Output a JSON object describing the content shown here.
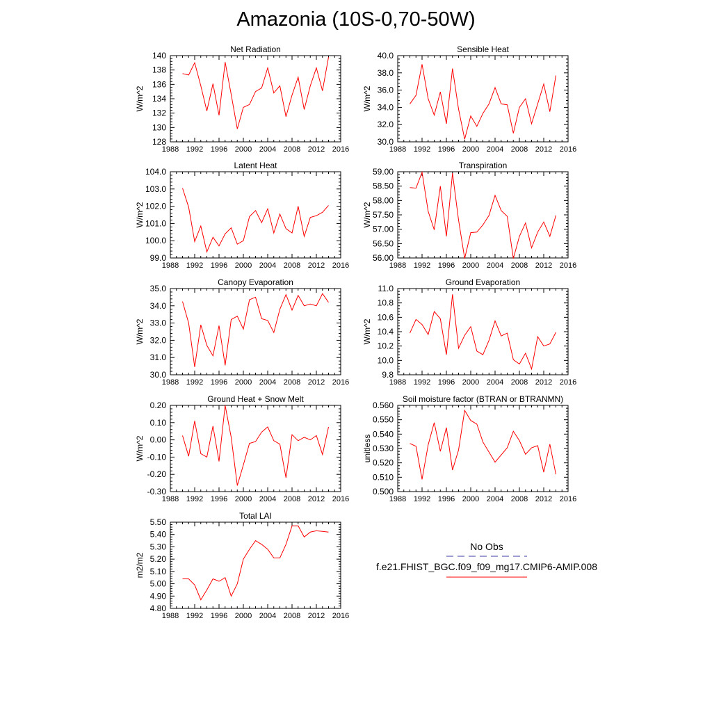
{
  "figure": {
    "title": "Amazonia (10S-0,70-50W)"
  },
  "legend": {
    "obs_label": "No Obs",
    "obs_color": "#3a3aa0",
    "model_label": "f.e21.FHIST_BGC.f09_f09_mg17.CMIP6-AMIP.008",
    "model_color": "#ff0000"
  },
  "chart_data": [
    {
      "type": "line",
      "title": "Net Radiation",
      "ylabel": "W/m^2",
      "xlim": [
        1988,
        2016
      ],
      "ylim": [
        128,
        140
      ],
      "xticks": [
        "1988",
        "1992",
        "1996",
        "2000",
        "2004",
        "2008",
        "2012",
        "2016"
      ],
      "yticks": [
        "128",
        "130",
        "132",
        "134",
        "136",
        "138",
        "140"
      ],
      "series": [
        {
          "values": [
            137.5,
            137.3,
            139.0,
            135.8,
            132.3,
            136.1,
            131.7,
            139.1,
            134.6,
            129.8,
            132.8,
            133.2,
            135.0,
            135.5,
            138.3,
            134.8,
            135.8,
            131.5,
            134.5,
            137.0,
            132.5,
            135.8,
            138.3,
            135.1,
            139.8
          ]
        }
      ]
    },
    {
      "type": "line",
      "title": "Sensible Heat",
      "ylabel": "W/m^2",
      "xlim": [
        1988,
        2016
      ],
      "ylim": [
        30.0,
        40.0
      ],
      "xticks": [
        "1988",
        "1992",
        "1996",
        "2000",
        "2004",
        "2008",
        "2012",
        "2016"
      ],
      "yticks": [
        "30.0",
        "32.0",
        "34.0",
        "36.0",
        "38.0",
        "40.0"
      ],
      "series": [
        {
          "values": [
            34.4,
            35.4,
            39.0,
            35.0,
            33.1,
            35.8,
            32.1,
            38.5,
            33.8,
            30.3,
            33.0,
            31.8,
            33.3,
            34.4,
            36.3,
            34.4,
            34.3,
            31.0,
            34.0,
            35.0,
            32.1,
            34.4,
            36.7,
            33.5,
            37.7
          ]
        }
      ]
    },
    {
      "type": "line",
      "title": "Latent Heat",
      "ylabel": "W/m^2",
      "xlim": [
        1988,
        2016
      ],
      "ylim": [
        99.0,
        104.0
      ],
      "xticks": [
        "1988",
        "1992",
        "1996",
        "2000",
        "2004",
        "2008",
        "2012",
        "2016"
      ],
      "yticks": [
        "99.0",
        "100.0",
        "101.0",
        "102.0",
        "103.0",
        "104.0"
      ],
      "series": [
        {
          "values": [
            103.05,
            101.95,
            99.95,
            100.85,
            99.35,
            100.2,
            99.7,
            100.4,
            100.75,
            99.8,
            100.0,
            101.4,
            101.75,
            101.05,
            101.85,
            100.45,
            101.55,
            100.7,
            100.45,
            102.0,
            100.25,
            101.35,
            101.45,
            101.65,
            102.05
          ]
        }
      ]
    },
    {
      "type": "line",
      "title": "Transpiration",
      "ylabel": "W/m^2",
      "xlim": [
        1988,
        2016
      ],
      "ylim": [
        56.0,
        59.0
      ],
      "xticks": [
        "1988",
        "1992",
        "1996",
        "2000",
        "2004",
        "2008",
        "2012",
        "2016"
      ],
      "yticks": [
        "56.00",
        "56.50",
        "57.00",
        "57.50",
        "58.00",
        "58.50",
        "59.00"
      ],
      "series": [
        {
          "values": [
            58.45,
            58.43,
            58.98,
            57.62,
            56.98,
            58.5,
            56.75,
            58.95,
            57.32,
            55.98,
            56.88,
            56.9,
            57.15,
            57.48,
            58.18,
            57.65,
            57.45,
            55.98,
            56.75,
            57.22,
            56.35,
            56.9,
            57.25,
            56.75,
            57.48
          ]
        }
      ]
    },
    {
      "type": "line",
      "title": "Canopy Evaporation",
      "ylabel": "W/m^2",
      "xlim": [
        1988,
        2016
      ],
      "ylim": [
        30.0,
        35.0
      ],
      "xticks": [
        "1988",
        "1992",
        "1996",
        "2000",
        "2004",
        "2008",
        "2012",
        "2016"
      ],
      "yticks": [
        "30.0",
        "31.0",
        "32.0",
        "33.0",
        "34.0",
        "35.0"
      ],
      "series": [
        {
          "values": [
            34.25,
            33.0,
            30.45,
            32.9,
            31.7,
            31.1,
            32.85,
            30.55,
            33.2,
            33.4,
            32.65,
            34.35,
            34.5,
            33.25,
            33.15,
            32.45,
            33.8,
            34.65,
            33.75,
            34.6,
            34.0,
            34.1,
            34.0,
            34.7,
            34.2
          ]
        }
      ]
    },
    {
      "type": "line",
      "title": "Ground Evaporation",
      "ylabel": "W/m^2",
      "xlim": [
        1988,
        2016
      ],
      "ylim": [
        9.8,
        11.0
      ],
      "xticks": [
        "1988",
        "1992",
        "1996",
        "2000",
        "2004",
        "2008",
        "2012",
        "2016"
      ],
      "yticks": [
        "9.8",
        "10.0",
        "10.2",
        "10.4",
        "10.6",
        "10.8",
        "11.0"
      ],
      "series": [
        {
          "values": [
            10.38,
            10.57,
            10.5,
            10.36,
            10.68,
            10.58,
            10.08,
            10.92,
            10.17,
            10.35,
            10.47,
            10.13,
            10.08,
            10.28,
            10.55,
            10.34,
            10.38,
            10.01,
            9.95,
            10.1,
            9.88,
            10.33,
            10.2,
            10.23,
            10.39
          ]
        }
      ]
    },
    {
      "type": "line",
      "title": "Ground Heat + Snow Melt",
      "ylabel": "W/m^2",
      "xlim": [
        1988,
        2016
      ],
      "ylim": [
        -0.3,
        0.2
      ],
      "xticks": [
        "1988",
        "1992",
        "1996",
        "2000",
        "2004",
        "2008",
        "2012",
        "2016"
      ],
      "yticks": [
        "-0.30",
        "-0.20",
        "-0.10",
        "0.00",
        "0.10",
        "0.20"
      ],
      "series": [
        {
          "values": [
            0.025,
            -0.095,
            0.11,
            -0.08,
            -0.1,
            0.08,
            -0.125,
            0.2,
            0.015,
            -0.265,
            -0.145,
            -0.02,
            -0.01,
            0.045,
            0.075,
            -0.005,
            -0.025,
            -0.22,
            0.03,
            -0.005,
            0.015,
            0.0,
            0.025,
            -0.085,
            0.075
          ]
        }
      ]
    },
    {
      "type": "line",
      "title": "Soil moisture factor (BTRAN or BTRANMN)",
      "ylabel": "unitless",
      "xlim": [
        1988,
        2016
      ],
      "ylim": [
        0.5,
        0.56
      ],
      "xticks": [
        "1988",
        "1992",
        "1996",
        "2000",
        "2004",
        "2008",
        "2012",
        "2016"
      ],
      "yticks": [
        "0.500",
        "0.510",
        "0.520",
        "0.530",
        "0.540",
        "0.550",
        "0.560"
      ],
      "series": [
        {
          "values": [
            0.5335,
            0.5315,
            0.5085,
            0.5325,
            0.548,
            0.528,
            0.5445,
            0.515,
            0.529,
            0.5565,
            0.5495,
            0.547,
            0.5345,
            0.5275,
            0.5205,
            0.5255,
            0.5305,
            0.542,
            0.5355,
            0.526,
            0.5305,
            0.532,
            0.5135,
            0.533,
            0.512
          ]
        }
      ]
    },
    {
      "type": "line",
      "title": "Total LAI",
      "ylabel": "m2/m2",
      "xlim": [
        1988,
        2016
      ],
      "ylim": [
        4.8,
        5.5
      ],
      "xticks": [
        "1988",
        "1992",
        "1996",
        "2000",
        "2004",
        "2008",
        "2012",
        "2016"
      ],
      "yticks": [
        "4.80",
        "4.90",
        "5.00",
        "5.10",
        "5.20",
        "5.30",
        "5.40",
        "5.50"
      ],
      "series": [
        {
          "values": [
            5.04,
            5.04,
            4.99,
            4.87,
            4.95,
            5.04,
            5.02,
            5.05,
            4.9,
            5.0,
            5.2,
            5.28,
            5.35,
            5.32,
            5.28,
            5.21,
            5.21,
            5.32,
            5.47,
            5.47,
            5.38,
            5.42,
            5.43,
            5.425,
            5.42
          ]
        }
      ]
    }
  ]
}
